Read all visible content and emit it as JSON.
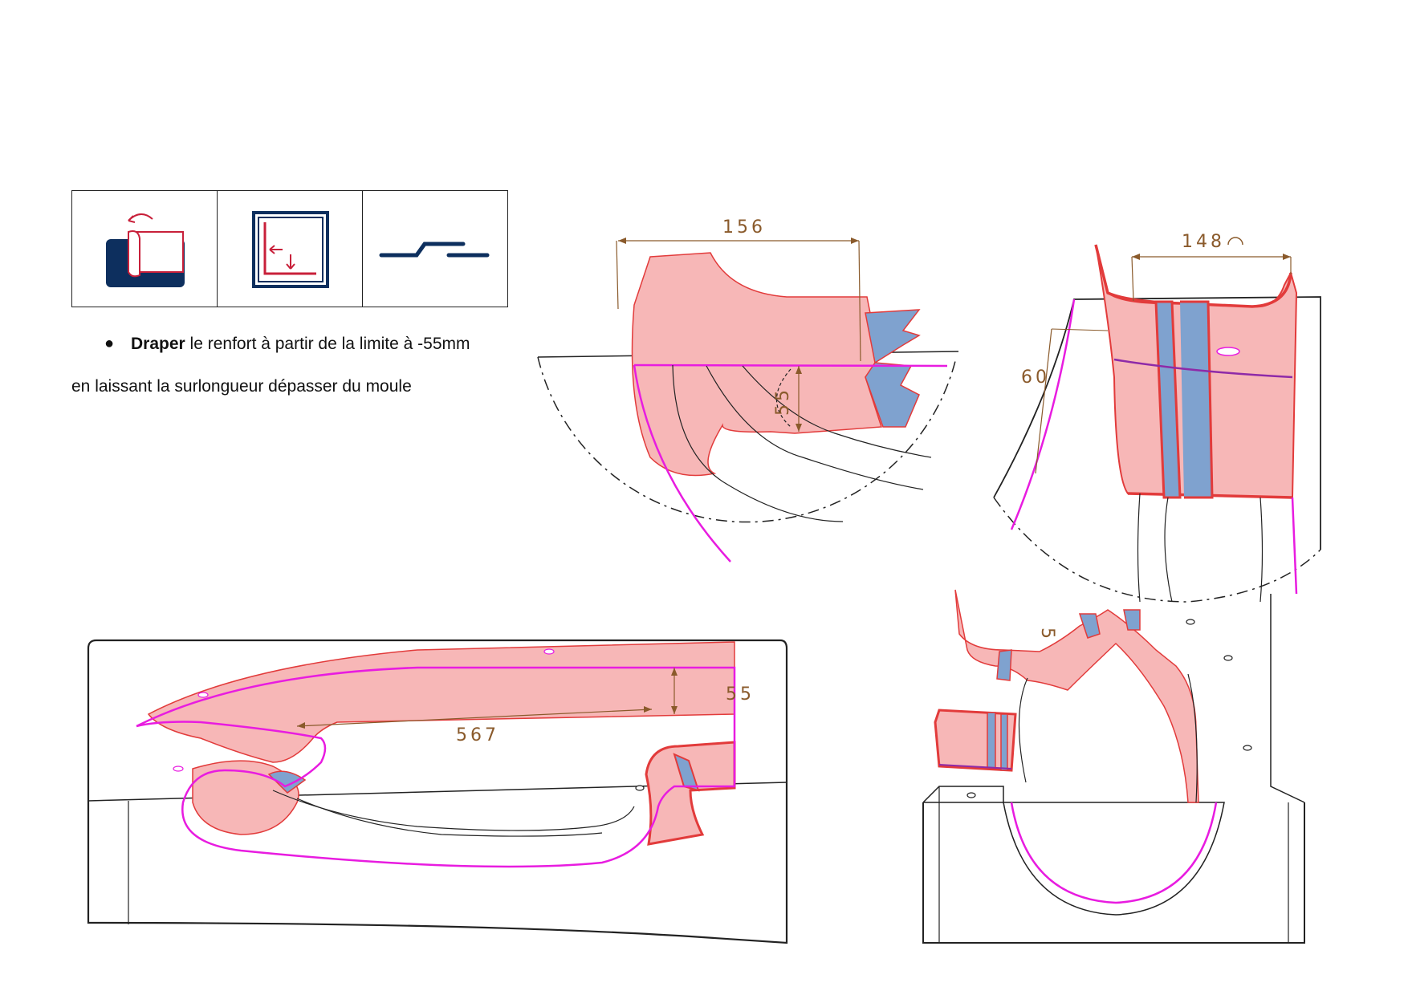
{
  "icons": [
    {
      "name": "drape-fold-icon"
    },
    {
      "name": "corner-limit-icon"
    },
    {
      "name": "step-offset-icon"
    }
  ],
  "instruction": {
    "bold": "Draper",
    "rest": " le renfort à partir de la limite à -55mm",
    "line2": "en laissant la surlongueur dépasser du moule"
  },
  "dimensions": {
    "detail_left_width": "156",
    "detail_left_height": "55",
    "detail_right_width": "148",
    "detail_right_height": "60",
    "main_length": "567",
    "main_height": "55",
    "side_partial": "5"
  },
  "colors": {
    "ply_fill": "#f7b7b7",
    "ply_edge": "#e23b3b",
    "limit_line": "#e81ce0",
    "overlap_band": "#7fa2cf",
    "dimension": "#8a5a2b",
    "icon_navy": "#0d2f5e",
    "icon_red": "#c8203a"
  }
}
